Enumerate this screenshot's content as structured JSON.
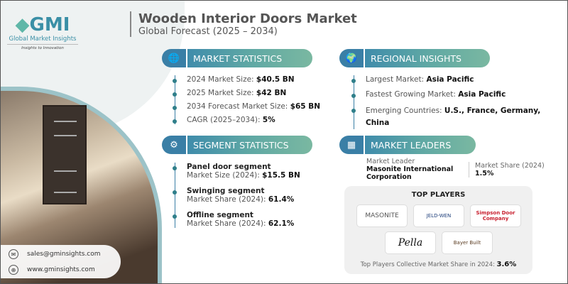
{
  "brand": {
    "logo": "GMI",
    "name": "Global Market Insights",
    "tagline": "Insights to Innovation"
  },
  "header": {
    "title": "Wooden Interior Doors Market",
    "subtitle": "Global Forecast (2025 – 2034)"
  },
  "market_statistics": {
    "title": "MARKET STATISTICS",
    "icon": "globe-chart-icon",
    "items": [
      {
        "label": "2024 Market Size: ",
        "value": "$40.5 BN"
      },
      {
        "label": "2025 Market Size: ",
        "value": "$42 BN"
      },
      {
        "label": "2034 Forecast Market Size: ",
        "value": "$65 BN"
      },
      {
        "label": "CAGR (2025–2034): ",
        "value": "5%"
      }
    ]
  },
  "regional_insights": {
    "title": "REGIONAL INSIGHTS",
    "icon": "globe-icon",
    "items": [
      {
        "label": "Largest Market: ",
        "value": "Asia Pacific"
      },
      {
        "label": "Fastest Growing Market: ",
        "value": "Asia Pacific"
      },
      {
        "label": "Emerging Countries: ",
        "value": "U.S., France, Germany, China"
      }
    ]
  },
  "segment_statistics": {
    "title": "SEGMENT STATISTICS",
    "icon": "segment-icon",
    "items": [
      {
        "name": "Panel door segment",
        "label": "Market Size (2024): ",
        "value": "$15.5 BN"
      },
      {
        "name": "Swinging segment",
        "label": "Market Share (2024): ",
        "value": "61.4%"
      },
      {
        "name": "Offline segment",
        "label": "Market Share (2024): ",
        "value": "62.1%"
      }
    ]
  },
  "market_leaders": {
    "title": "MARKET LEADERS",
    "icon": "leaders-chart-icon",
    "leader_label": "Market Leader",
    "leader": "Masonite International Corporation",
    "share_label": "Market Share (2024)",
    "share": "1.5%"
  },
  "top_players": {
    "title": "TOP PLAYERS",
    "logos": [
      "MASONITE",
      "JELD-WEN",
      "Simpson Door Company",
      "Pella",
      "Bayer Built"
    ],
    "footer_label": "Top Players Collective Market Share in 2024: ",
    "footer_value": "3.6%"
  },
  "contact": {
    "email": "sales@gminsights.com",
    "website": "www.gminsights.com"
  },
  "colors": {
    "accent": "#3a7fa6",
    "teal": "#6fb3a3",
    "simpson": "#c8202f"
  }
}
